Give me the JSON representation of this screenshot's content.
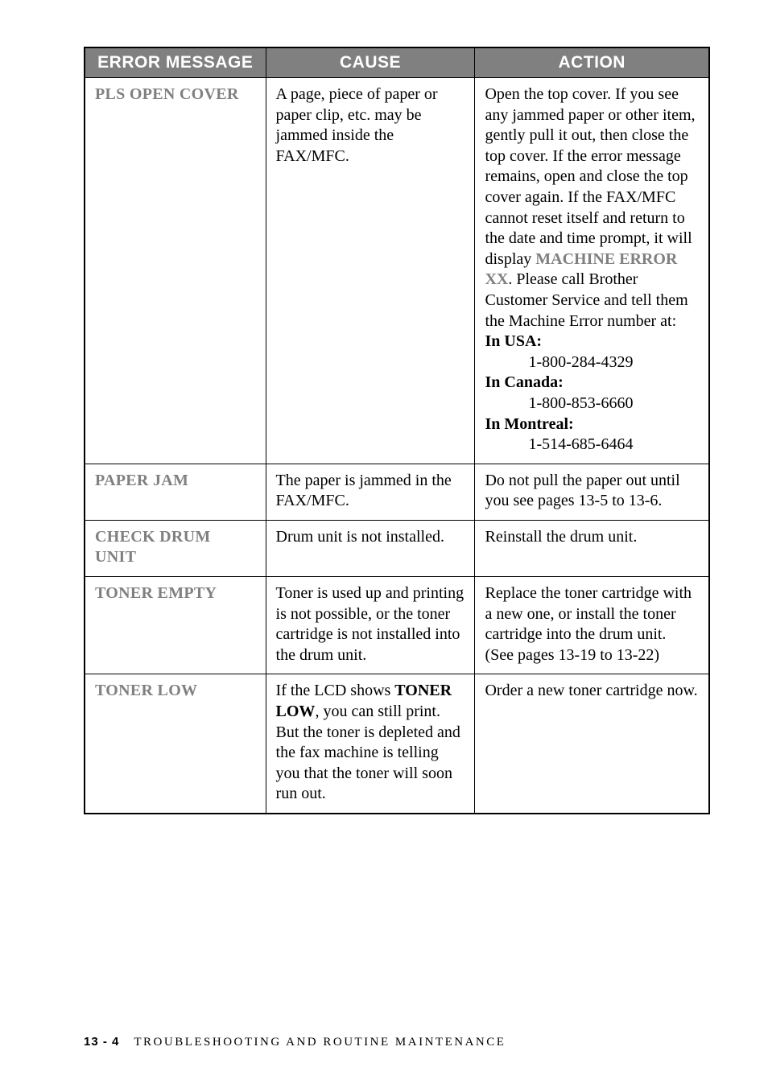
{
  "table": {
    "headers": {
      "msg": "ERROR MESSAGE",
      "cause": "CAUSE",
      "action": "ACTION"
    },
    "col_widths": [
      "29%",
      "33.5%",
      "37.5%"
    ],
    "header_bg": "#808080",
    "header_fg": "#ffffff",
    "border_color": "#000000",
    "msg_label_color": "#808080",
    "body_fontsize": 20,
    "header_fontsize": 21,
    "rows": [
      {
        "msg": "PLS OPEN COVER",
        "cause": "A page, piece of paper or paper clip, etc. may be jammed inside the FAX/MFC.",
        "action_parts": {
          "pre": "Open the top cover. If you see any jammed paper or other item, gently pull it out, then close the top cover. If the error message remains, open and close the top cover again. If the FAX/MFC cannot reset itself and return to the date and time prompt, it will display ",
          "kw1": "MACHINE ERROR XX",
          "mid": ". Please call Brother Customer Service and tell them the Machine Error number at:",
          "in_usa": "In USA:",
          "usa_num": "1-800-284-4329",
          "in_canada": "In Canada:",
          "can_num": "1-800-853-6660",
          "in_montreal": "In Montreal:",
          "mon_num": "1-514-685-6464"
        }
      },
      {
        "msg": "PAPER JAM",
        "cause": "The paper is jammed in the FAX/MFC.",
        "action": "Do not pull the paper out until you see pages 13-5 to 13-6."
      },
      {
        "msg": "CHECK DRUM UNIT",
        "cause": "Drum unit is not installed.",
        "action": "Reinstall the drum unit."
      },
      {
        "msg": "TONER EMPTY",
        "cause": "Toner is used up and printing is not possible, or the toner cartridge is not installed into the drum unit.",
        "action": "Replace the toner cartridge with a new one, or install the toner cartridge into the drum unit.\n(See pages 13-19 to 13-22)"
      },
      {
        "msg": "TONER LOW",
        "cause_pre": "If the LCD shows ",
        "cause_kw": "TONER LOW",
        "cause_post": ", you can still print.  But the toner is depleted and the fax machine is telling you that the toner will soon run out.",
        "action": "Order a new toner cartridge now."
      }
    ]
  },
  "footer": {
    "page": "13 - 4",
    "title": "TROUBLESHOOTING AND ROUTINE MAINTENANCE"
  }
}
